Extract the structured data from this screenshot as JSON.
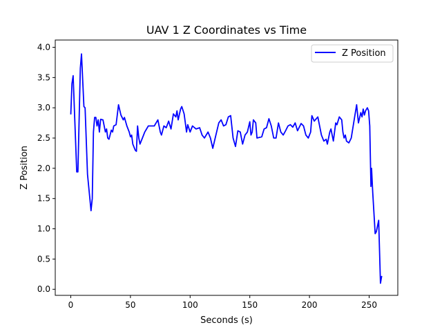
{
  "chart_data": {
    "type": "line",
    "title": "UAV 1 Z Coordinates vs Time",
    "xlabel": "Seconds (s)",
    "ylabel": "Z Position",
    "xlim": [
      -13,
      274
    ],
    "ylim": [
      -0.1,
      4.12
    ],
    "xticks": [
      0,
      50,
      100,
      150,
      200,
      250
    ],
    "xtick_labels": [
      "0",
      "50",
      "100",
      "150",
      "200",
      "250"
    ],
    "yticks": [
      0.0,
      0.5,
      1.0,
      1.5,
      2.0,
      2.5,
      3.0,
      3.5,
      4.0
    ],
    "ytick_labels": [
      "0.0",
      "0.5",
      "1.0",
      "1.5",
      "2.0",
      "2.5",
      "3.0",
      "3.5",
      "4.0"
    ],
    "grid": false,
    "legend_position": "top-right",
    "series": [
      {
        "name": "Z Position",
        "color": "#0000ff",
        "x": [
          0,
          1,
          2,
          5,
          6,
          8,
          9,
          11,
          12,
          14,
          16,
          17,
          18,
          19,
          20,
          21,
          22,
          23,
          24,
          25,
          27,
          29,
          30,
          31,
          32,
          34,
          35,
          36,
          38,
          40,
          42,
          44,
          45,
          47,
          49,
          50,
          51,
          52,
          54,
          55,
          56,
          57,
          58,
          60,
          62,
          65,
          70,
          73,
          75,
          76,
          78,
          80,
          82,
          84,
          86,
          88,
          89,
          90,
          92,
          93,
          95,
          97,
          98,
          100,
          102,
          105,
          108,
          110,
          112,
          115,
          117,
          119,
          121,
          124,
          126,
          128,
          130,
          132,
          134,
          136,
          138,
          140,
          142,
          144,
          146,
          148,
          150,
          151,
          152,
          153,
          155,
          156,
          160,
          162,
          164,
          166,
          168,
          170,
          172,
          174,
          176,
          178,
          180,
          182,
          184,
          186,
          188,
          190,
          193,
          195,
          197,
          199,
          201,
          202,
          204,
          207,
          210,
          212,
          214,
          215,
          217,
          218,
          220,
          222,
          223,
          225,
          227,
          228,
          229,
          230,
          231,
          233,
          235,
          237,
          239.5,
          241,
          243,
          244,
          245,
          246,
          247,
          248.5,
          249.5,
          250.5,
          251.5,
          252,
          253,
          254.5,
          255,
          256,
          258,
          259.5,
          260.5
        ],
        "y": [
          2.89,
          3.4,
          3.53,
          1.94,
          1.94,
          3.65,
          3.89,
          3.02,
          3.0,
          1.9,
          1.5,
          1.3,
          1.5,
          2.6,
          2.84,
          2.84,
          2.7,
          2.8,
          2.6,
          2.81,
          2.8,
          2.6,
          2.65,
          2.5,
          2.48,
          2.63,
          2.6,
          2.7,
          2.72,
          3.05,
          2.88,
          2.8,
          2.84,
          2.7,
          2.6,
          2.52,
          2.55,
          2.4,
          2.3,
          2.28,
          2.7,
          2.5,
          2.4,
          2.5,
          2.6,
          2.7,
          2.7,
          2.8,
          2.6,
          2.55,
          2.7,
          2.67,
          2.78,
          2.65,
          2.9,
          2.85,
          2.95,
          2.8,
          2.98,
          3.02,
          2.9,
          2.6,
          2.72,
          2.6,
          2.7,
          2.65,
          2.67,
          2.55,
          2.5,
          2.6,
          2.5,
          2.33,
          2.5,
          2.75,
          2.8,
          2.7,
          2.72,
          2.85,
          2.87,
          2.5,
          2.36,
          2.62,
          2.6,
          2.4,
          2.55,
          2.6,
          2.77,
          2.55,
          2.6,
          2.8,
          2.75,
          2.5,
          2.52,
          2.65,
          2.67,
          2.82,
          2.7,
          2.5,
          2.5,
          2.75,
          2.6,
          2.55,
          2.62,
          2.7,
          2.72,
          2.68,
          2.75,
          2.62,
          2.74,
          2.7,
          2.55,
          2.5,
          2.6,
          2.87,
          2.78,
          2.85,
          2.55,
          2.45,
          2.48,
          2.4,
          2.6,
          2.65,
          2.45,
          2.75,
          2.72,
          2.85,
          2.8,
          2.6,
          2.5,
          2.55,
          2.45,
          2.42,
          2.5,
          2.75,
          3.05,
          2.75,
          2.92,
          2.85,
          2.98,
          2.88,
          2.95,
          3.0,
          2.95,
          2.7,
          1.7,
          2.0,
          1.6,
          1.1,
          0.92,
          0.95,
          1.14,
          0.1,
          0.22
        ]
      }
    ]
  }
}
